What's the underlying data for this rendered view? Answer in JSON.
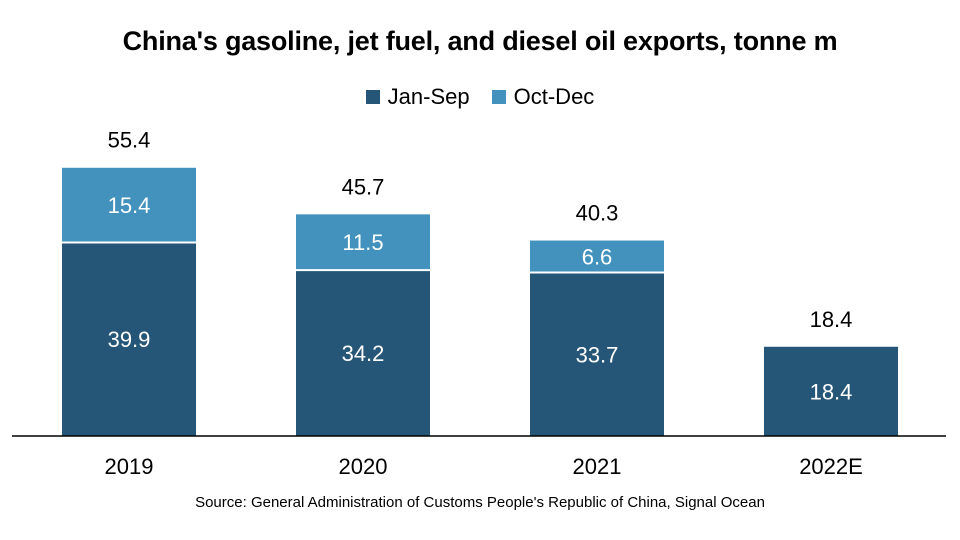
{
  "title": "China's gasoline, jet fuel, and diesel oil exports, tonne m",
  "source": "Source: General Administration of Customs People's Republic of China, Signal Ocean",
  "colors": {
    "jan_sep": "#255677",
    "oct_dec": "#4292bd",
    "axis": "#000000"
  },
  "chart_data": {
    "type": "bar",
    "stacked": true,
    "categories": [
      "2019",
      "2020",
      "2021",
      "2022E"
    ],
    "series": [
      {
        "name": "Jan-Sep",
        "values": [
          39.9,
          34.2,
          33.7,
          18.4
        ],
        "labels": [
          "39.9",
          "34.2",
          "33.7",
          "18.4"
        ]
      },
      {
        "name": "Oct-Dec",
        "values": [
          15.4,
          11.5,
          6.6,
          0
        ],
        "labels": [
          "15.4",
          "11.5",
          "6.6",
          ""
        ]
      }
    ],
    "totals": [
      55.4,
      45.7,
      40.3,
      18.4
    ],
    "total_labels": [
      "55.4",
      "45.7",
      "40.3",
      "18.4"
    ],
    "legend_position": "top-center",
    "grid": false,
    "y_axis_visible": false,
    "ylim": [
      0,
      60
    ]
  }
}
